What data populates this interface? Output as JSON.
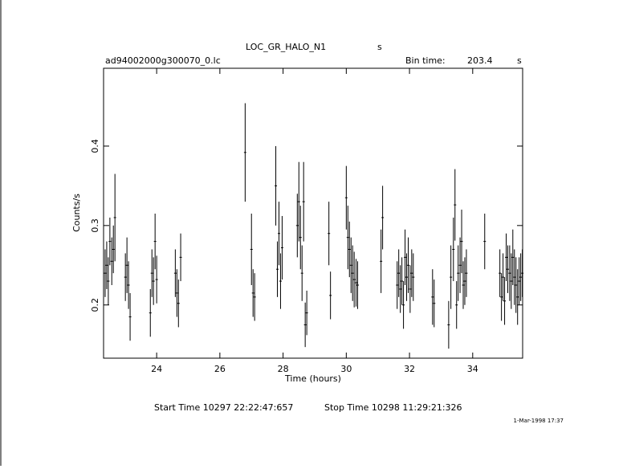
{
  "chart_data": {
    "type": "errorbar",
    "title": "LOC_GR_HALO_N1",
    "title_unit": "s",
    "file_name": "ad94002000g300070_0.lc",
    "bin_time_label": "Bin time:",
    "bin_time": 203.4,
    "bin_time_unit": "s",
    "x_label": "Time (hours)",
    "y_label": "Counts/s",
    "start_time": "Start Time 10297 22:22:47:657",
    "stop_time": "Stop Time 10298 11:29:21:326",
    "date_stamp": "1-Mar-1998 17:37",
    "color": "#000000",
    "xlim": [
      22.32,
      35.58
    ],
    "xticks": [
      24,
      26,
      28,
      30,
      32,
      34
    ],
    "ylim": [
      0.133,
      0.498
    ],
    "yticks": [
      0.2,
      0.3,
      0.4
    ],
    "x": [
      22.37,
      22.42,
      22.47,
      22.52,
      22.58,
      22.63,
      22.68,
      23.01,
      23.06,
      23.11,
      23.16,
      23.8,
      23.85,
      23.9,
      23.95,
      24.0,
      24.59,
      24.64,
      24.69,
      24.76,
      26.8,
      27.0,
      27.05,
      27.1,
      27.77,
      27.82,
      27.87,
      27.92,
      27.97,
      28.45,
      28.5,
      28.55,
      28.6,
      28.65,
      28.7,
      28.75,
      29.45,
      29.5,
      30.0,
      30.05,
      30.1,
      30.15,
      30.2,
      30.25,
      30.31,
      30.36,
      31.1,
      31.15,
      31.61,
      31.66,
      31.71,
      31.76,
      31.81,
      31.86,
      31.91,
      31.96,
      32.02,
      32.07,
      32.12,
      32.73,
      32.78,
      33.24,
      33.31,
      33.39,
      33.44,
      33.49,
      33.54,
      33.6,
      33.65,
      33.7,
      33.75,
      33.8,
      34.38,
      34.86,
      34.91,
      34.96,
      35.01,
      35.06,
      35.11,
      35.17,
      35.22,
      35.27,
      35.32,
      35.37,
      35.42,
      35.47,
      35.52,
      35.57
    ],
    "values": [
      0.24,
      0.25,
      0.23,
      0.28,
      0.255,
      0.27,
      0.31,
      0.235,
      0.25,
      0.225,
      0.185,
      0.19,
      0.24,
      0.23,
      0.28,
      0.232,
      0.24,
      0.215,
      0.202,
      0.26,
      0.392,
      0.27,
      0.215,
      0.21,
      0.35,
      0.245,
      0.29,
      0.23,
      0.272,
      0.3,
      0.33,
      0.285,
      0.24,
      0.33,
      0.175,
      0.19,
      0.29,
      0.212,
      0.335,
      0.285,
      0.27,
      0.25,
      0.24,
      0.232,
      0.228,
      0.225,
      0.255,
      0.31,
      0.225,
      0.24,
      0.22,
      0.23,
      0.2,
      0.26,
      0.235,
      0.25,
      0.22,
      0.24,
      0.235,
      0.21,
      0.202,
      0.175,
      0.235,
      0.27,
      0.326,
      0.2,
      0.24,
      0.25,
      0.28,
      0.225,
      0.23,
      0.24,
      0.28,
      0.24,
      0.21,
      0.235,
      0.205,
      0.26,
      0.245,
      0.24,
      0.23,
      0.26,
      0.235,
      0.225,
      0.21,
      0.23,
      0.235,
      0.24
    ],
    "errors": [
      0.03,
      0.03,
      0.03,
      0.03,
      0.03,
      0.03,
      0.055,
      0.03,
      0.035,
      0.03,
      0.03,
      0.03,
      0.03,
      0.03,
      0.035,
      0.03,
      0.03,
      0.03,
      0.03,
      0.03,
      0.062,
      0.045,
      0.03,
      0.03,
      0.05,
      0.035,
      0.04,
      0.035,
      0.04,
      0.04,
      0.05,
      0.04,
      0.035,
      0.05,
      0.028,
      0.028,
      0.04,
      0.03,
      0.04,
      0.04,
      0.035,
      0.035,
      0.035,
      0.035,
      0.03,
      0.03,
      0.04,
      0.04,
      0.03,
      0.03,
      0.03,
      0.03,
      0.03,
      0.035,
      0.03,
      0.035,
      0.03,
      0.03,
      0.03,
      0.035,
      0.03,
      0.03,
      0.04,
      0.04,
      0.045,
      0.03,
      0.035,
      0.035,
      0.04,
      0.03,
      0.03,
      0.03,
      0.035,
      0.03,
      0.03,
      0.03,
      0.03,
      0.03,
      0.03,
      0.035,
      0.035,
      0.035,
      0.035,
      0.035,
      0.035,
      0.03,
      0.03,
      0.03
    ]
  }
}
